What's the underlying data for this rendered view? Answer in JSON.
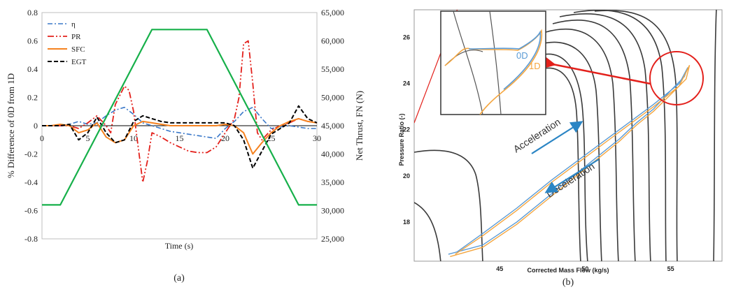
{
  "panel_labels": {
    "a": "(a)",
    "b": "(b)"
  },
  "colors": {
    "eta": "#3a78c9",
    "pr": "#e3201b",
    "sfc": "#f58220",
    "egt": "#000000",
    "thrust": "#16b04a",
    "map_lines": "#3a3a3a",
    "annot_red": "#e3201b",
    "arrow_blue": "#2b85c4",
    "label_0d": "#5b9bd5",
    "label_1d": "#f4a640"
  },
  "chart_data": [
    {
      "type": "line",
      "title": "",
      "xlabel": "Time (s)",
      "ylabel": "% Difference of 0D from 1D",
      "y2label": "Net Thrust, FN (N)",
      "xlim": [
        0,
        30
      ],
      "ylim": [
        -0.8,
        0.8
      ],
      "y2lim": [
        25000,
        65000
      ],
      "xticks": [
        "0",
        "5",
        "10",
        "15",
        "20",
        "25",
        "30"
      ],
      "yticks": [
        "0.8",
        "0.6",
        "0.4",
        "0.2",
        "0",
        "-0.2",
        "-0.4",
        "-0.6",
        "-0.8"
      ],
      "y2ticks": [
        "65,000",
        "60,000",
        "55,000",
        "50,000",
        "45,000",
        "40,000",
        "35,000",
        "30,000",
        "25,000"
      ],
      "legend": [
        "η",
        "PR",
        "SFC",
        "EGT"
      ],
      "series": [
        {
          "name": "η",
          "axis": "left",
          "style": "dashdot",
          "x": [
            0,
            1,
            2,
            3,
            4,
            5,
            6,
            7,
            8,
            9,
            10,
            11,
            12,
            13,
            14,
            15,
            16,
            17,
            18,
            19,
            20,
            21,
            22,
            23,
            24,
            25,
            26,
            27,
            28,
            29,
            30
          ],
          "y": [
            0,
            0,
            0,
            0.01,
            0.03,
            0.01,
            0.02,
            0.07,
            0.11,
            0.13,
            0.08,
            0.02,
            0.0,
            -0.02,
            -0.04,
            -0.05,
            -0.06,
            -0.07,
            -0.08,
            -0.09,
            -0.02,
            0.03,
            0.1,
            0.13,
            0.05,
            -0.02,
            -0.01,
            0.0,
            -0.01,
            -0.02,
            -0.02
          ]
        },
        {
          "name": "PR",
          "axis": "left",
          "style": "dashdot",
          "x": [
            0,
            1,
            2,
            3,
            4,
            5,
            6,
            7,
            7.5,
            8,
            9,
            9.5,
            10,
            10.5,
            11,
            11.5,
            12,
            13,
            14,
            15,
            16,
            17,
            18,
            19,
            20,
            21,
            21.5,
            22,
            22.5,
            23,
            23.5,
            24,
            25,
            26,
            27,
            28,
            29,
            30
          ],
          "y": [
            0,
            0,
            0,
            0,
            -0.02,
            0.02,
            0.07,
            0.0,
            -0.05,
            0.15,
            0.28,
            0.25,
            0.1,
            -0.15,
            -0.4,
            -0.25,
            -0.05,
            -0.08,
            -0.12,
            -0.15,
            -0.18,
            -0.19,
            -0.19,
            -0.15,
            -0.05,
            0.05,
            0.2,
            0.58,
            0.6,
            0.3,
            -0.05,
            -0.1,
            -0.03,
            0.0,
            0.02,
            0.05,
            0.03,
            0.02
          ]
        },
        {
          "name": "SFC",
          "axis": "left",
          "style": "solid",
          "x": [
            0,
            1,
            2,
            3,
            4,
            5,
            6,
            7,
            8,
            9,
            10,
            11,
            12,
            13,
            14,
            15,
            16,
            17,
            18,
            19,
            20,
            21,
            22,
            23,
            24,
            25,
            26,
            27,
            28,
            29,
            30
          ],
          "y": [
            0,
            0,
            0.01,
            0,
            -0.05,
            -0.03,
            0.02,
            -0.08,
            -0.12,
            -0.1,
            0.0,
            0.03,
            0.02,
            0.01,
            0.0,
            0.0,
            0.0,
            0.0,
            0.0,
            0.0,
            0.01,
            0.0,
            -0.05,
            -0.2,
            -0.12,
            -0.05,
            0.0,
            0.03,
            0.05,
            0.03,
            0.02
          ]
        },
        {
          "name": "EGT",
          "axis": "left",
          "style": "dashed",
          "x": [
            0,
            1,
            2,
            3,
            4,
            5,
            6,
            7,
            8,
            9,
            10,
            11,
            12,
            13,
            14,
            15,
            16,
            17,
            18,
            19,
            20,
            21,
            22,
            23,
            24,
            25,
            26,
            27,
            28,
            29,
            30
          ],
          "y": [
            0,
            0,
            0,
            0.01,
            -0.1,
            -0.05,
            0.06,
            -0.05,
            -0.12,
            -0.1,
            0.03,
            0.07,
            0.05,
            0.03,
            0.02,
            0.02,
            0.02,
            0.02,
            0.02,
            0.02,
            0.02,
            0.0,
            -0.1,
            -0.3,
            -0.18,
            -0.06,
            -0.02,
            0.02,
            0.14,
            0.05,
            0.02
          ]
        },
        {
          "name": "Net Thrust",
          "axis": "right",
          "style": "solid",
          "x": [
            0,
            2,
            12,
            18,
            28,
            30
          ],
          "y": [
            31000,
            31000,
            62000,
            62000,
            31000,
            31000
          ]
        }
      ]
    },
    {
      "type": "line",
      "title": "",
      "xlabel": "Corrected Mass Flow (kg/s)",
      "ylabel": "Pressure Ratio (-)",
      "xlim": [
        40,
        58
      ],
      "ylim": [
        16.3,
        27.2
      ],
      "xticks": [
        "45",
        "50",
        "55"
      ],
      "yticks": [
        "26",
        "24",
        "22",
        "20",
        "18"
      ],
      "annotations": {
        "acceleration": "Acceleration",
        "deceleration": "Deceleration",
        "label_0d": "0D",
        "label_1d": "1D"
      },
      "series": [
        {
          "name": "0D",
          "x": [
            42.5,
            44,
            46,
            48,
            50,
            52,
            54,
            55.5,
            56,
            55.8,
            55,
            54,
            53,
            52,
            50,
            48,
            46,
            44,
            42
          ],
          "y": [
            16.7,
            17.5,
            18.6,
            19.8,
            20.9,
            22.0,
            23.1,
            24.0,
            24.7,
            24.3,
            23.7,
            22.9,
            22.3,
            21.6,
            20.4,
            19.2,
            18.0,
            17.0,
            16.6
          ]
        },
        {
          "name": "1D",
          "x": [
            42.4,
            44,
            46,
            48,
            50,
            52,
            54,
            55.5,
            56.1,
            55.9,
            55.1,
            54,
            53,
            52,
            50,
            48,
            46,
            44,
            42.1
          ],
          "y": [
            16.6,
            17.4,
            18.5,
            19.7,
            20.8,
            21.9,
            23.0,
            23.9,
            24.8,
            24.2,
            23.6,
            22.8,
            22.2,
            21.5,
            20.3,
            19.1,
            17.9,
            16.9,
            16.5
          ]
        }
      ]
    }
  ]
}
